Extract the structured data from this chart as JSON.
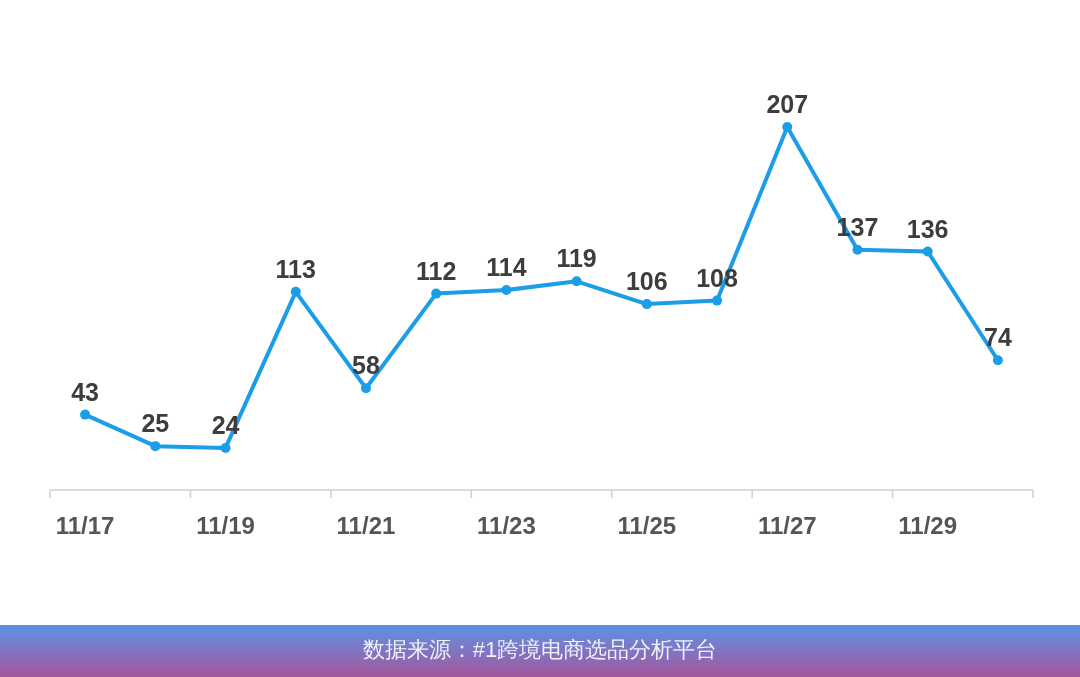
{
  "chart_data": {
    "type": "line",
    "categories": [
      "11/17",
      null,
      "11/19",
      null,
      "11/21",
      null,
      "11/23",
      null,
      "11/25",
      null,
      "11/27",
      null,
      "11/29",
      null
    ],
    "values": [
      43,
      25,
      24,
      113,
      58,
      112,
      114,
      119,
      106,
      108,
      207,
      137,
      136,
      74
    ],
    "color": "#1b9de8",
    "data_labels": true,
    "marker": "circle",
    "line_style": "solid",
    "tick_labels": "x",
    "annotations": [
      "数据来源：#1跨境电商选品分析平台"
    ]
  }
}
